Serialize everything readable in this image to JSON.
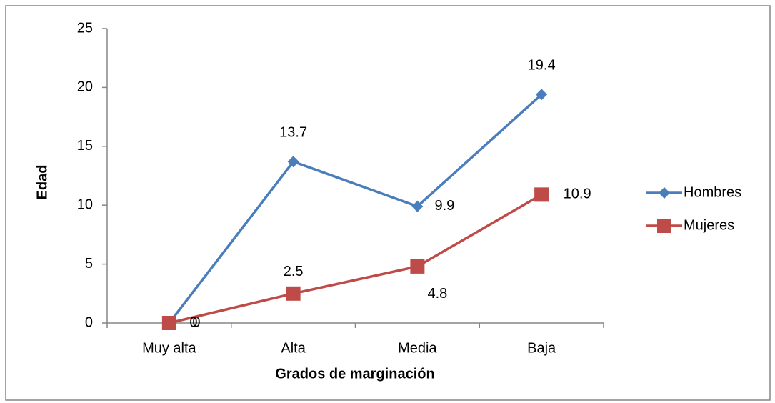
{
  "chart_data": {
    "type": "line",
    "x_label": "Grados de marginación",
    "y_label": "Edad",
    "categories": [
      "Muy alta",
      "Alta",
      "Media",
      "Baja"
    ],
    "series": [
      {
        "name": "Hombres",
        "color": "#4a7ebb",
        "marker": "diamond",
        "values": [
          0,
          13.7,
          9.9,
          19.4
        ]
      },
      {
        "name": "Mujeres",
        "color": "#be4b48",
        "marker": "square",
        "values": [
          0,
          2.5,
          4.8,
          10.9
        ]
      }
    ],
    "ylim": [
      0,
      25
    ],
    "yticks": [
      0,
      5,
      10,
      15,
      20,
      25
    ],
    "grid": false,
    "legend": "right"
  }
}
